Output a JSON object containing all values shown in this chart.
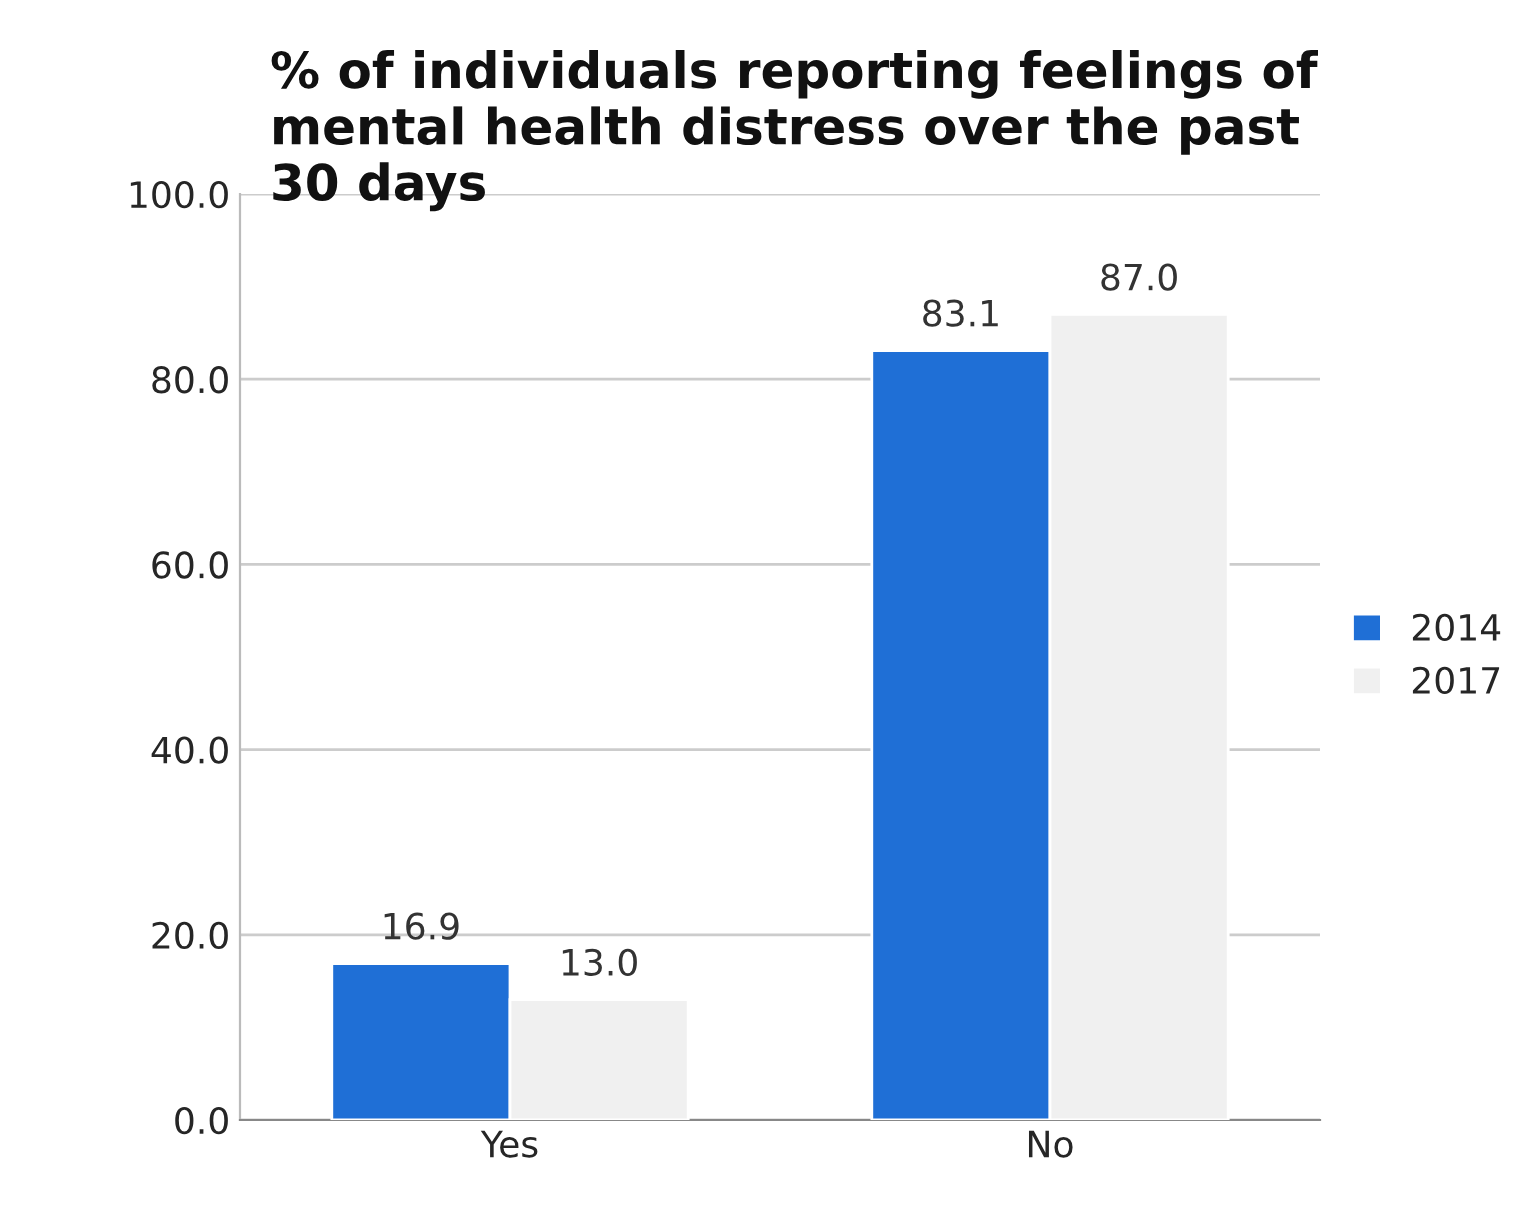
{
  "chart_data": {
    "type": "bar",
    "title": "% of individuals reporting feelings of mental health distress over the past 30 days",
    "categories": [
      "Yes",
      "No"
    ],
    "series": [
      {
        "name": "2014",
        "color": "#1f6fd6",
        "values": [
          16.9,
          83.1
        ],
        "value_labels": [
          "16.9",
          "83.1"
        ]
      },
      {
        "name": "2017",
        "color": "#f0f0f0",
        "values": [
          13.0,
          87.0
        ],
        "value_labels": [
          "13.0",
          "87.0"
        ]
      }
    ],
    "ylim": [
      0,
      100
    ],
    "yticks": [
      {
        "value": 0,
        "label": "0.0"
      },
      {
        "value": 20,
        "label": "20.0"
      },
      {
        "value": 40,
        "label": "40.0"
      },
      {
        "value": 60,
        "label": "60.0"
      },
      {
        "value": 80,
        "label": "80.0"
      },
      {
        "value": 100,
        "label": "100.0"
      }
    ],
    "grid": "y",
    "legend": "right"
  }
}
